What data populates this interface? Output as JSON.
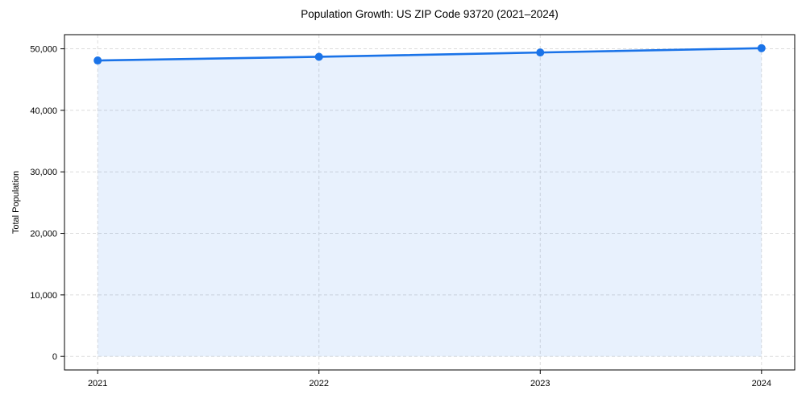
{
  "chart_data": {
    "type": "area",
    "title": "Population Growth: US ZIP Code 93720 (2021–2024)",
    "xlabel": "",
    "ylabel": "Total Population",
    "x": [
      2021,
      2022,
      2023,
      2024
    ],
    "x_tick_labels": [
      "2021",
      "2022",
      "2023",
      "2024"
    ],
    "series": [
      {
        "name": "Total Population",
        "values": [
          48100,
          48700,
          49400,
          50100
        ]
      }
    ],
    "y_ticks": [
      0,
      10000,
      20000,
      30000,
      40000,
      50000
    ],
    "y_tick_labels": [
      "0",
      "10,000",
      "20,000",
      "30,000",
      "40,000",
      "50,000"
    ],
    "xlim": [
      2020.85,
      2024.15
    ],
    "ylim": [
      -2200,
      52300
    ],
    "grid": true,
    "grid_style": "dashed",
    "legend": "none",
    "marker": "circle",
    "colors": {
      "line": "#1a73e8",
      "fill": "#1a73e8",
      "fill_opacity": 0.1,
      "grid": "#dcdcdc",
      "axis": "#000000",
      "text": "#000000",
      "background": "#ffffff"
    }
  }
}
